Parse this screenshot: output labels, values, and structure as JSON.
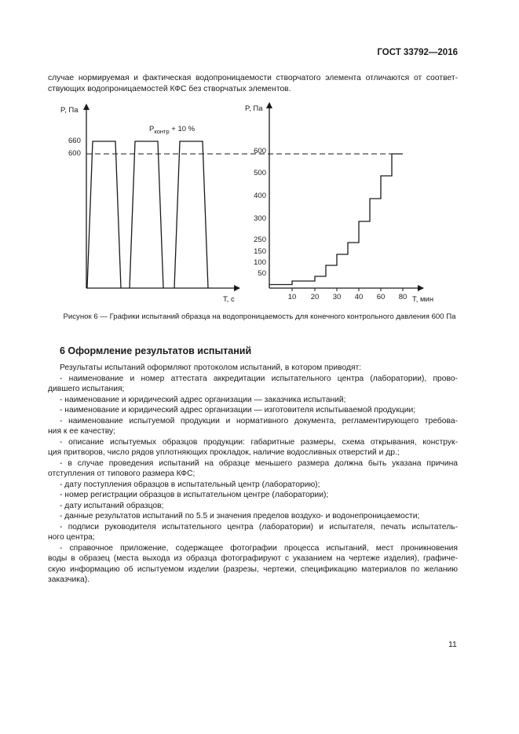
{
  "header": {
    "doc_id": "ГОСТ 33792—2016"
  },
  "intro": {
    "lines": [
      "случае нормируемая и фактическая водопроницаемости створчатого элемента отличаются от соответ-",
      "ствующих водопроницаемостей КФС без створчатых элементов."
    ]
  },
  "figure": {
    "caption": "Рисунок 6 — Графики испытаний образца на водопроницаемость для конечного контрольного давления 600 Па",
    "chart_data": [
      {
        "type": "line",
        "ylabel_var": "P",
        "ylabel_unit": ", Па",
        "xlabel_var": "T",
        "xlabel_unit": ", с",
        "y_ticks": [
          "660",
          "600"
        ],
        "annotation_var": "P",
        "annotation_sub": "контр",
        "annotation_rest": " + 10 %",
        "pulse_level": 660,
        "reference_level": 600,
        "pulse_count": 3,
        "reference_line": "dashed"
      },
      {
        "type": "line",
        "step": true,
        "ylabel_var": "P",
        "ylabel_unit": ", Па",
        "xlabel_var": "T",
        "xlabel_unit": ", мин",
        "x_ticks": [
          "10",
          "20",
          "30",
          "40",
          "60",
          "80"
        ],
        "y_ticks": [
          "600",
          "500",
          "400",
          "300",
          "250",
          "150",
          "100",
          "50"
        ],
        "reference_level": 600,
        "reference_line": "dashed",
        "steps": [
          {
            "from": 0,
            "to": 10,
            "value": 15
          },
          {
            "from": 10,
            "to": 20,
            "value": 30
          },
          {
            "from": 20,
            "to": 25,
            "value": 50
          },
          {
            "from": 25,
            "to": 30,
            "value": 100
          },
          {
            "from": 30,
            "to": 35,
            "value": 150
          },
          {
            "from": 35,
            "to": 40,
            "value": 250
          },
          {
            "from": 40,
            "to": 50,
            "value": 300
          },
          {
            "from": 50,
            "to": 60,
            "value": 400
          },
          {
            "from": 60,
            "to": 70,
            "value": 500
          },
          {
            "from": 70,
            "to": 80,
            "value": 600
          }
        ]
      }
    ]
  },
  "section": {
    "heading": "6 Оформление результатов испытаний"
  },
  "paragraphs": [
    [
      "Результаты испытаний оформляют протоколом испытаний, в котором приводят:"
    ],
    [
      "- наименование и номер аттестата аккредитации испытательного центра (лаборатории), прово-",
      "дившего испытания;"
    ],
    [
      "- наименование и юридический адрес организации — заказчика испытаний;"
    ],
    [
      "- наименование и юридический адрес организации — изготовителя испытываемой продукции;"
    ],
    [
      "- наименование испытуемой продукции и нормативного документа, регламентирующего требова-",
      "ния к ее качеству;"
    ],
    [
      "- описание испытуемых образцов продукции: габаритные размеры, схема открывания, конструк-",
      "ция притворов, число рядов уплотняющих прокладок, наличие водосливных отверстий и др.;"
    ],
    [
      "- в случае проведения испытаний на образце меньшего размера должна быть указана причина",
      "отступления от типового размера КФС;"
    ],
    [
      "- дату поступления образцов в испытательный центр (лабораторию);"
    ],
    [
      "- номер регистрации образцов в испытательном центре (лаборатории);"
    ],
    [
      "- дату испытаний образцов;"
    ],
    [
      "- данные результатов испытаний по 5.5 и значения пределов воздухо- и водонепроницаемости;"
    ],
    [
      "- подписи руководителя испытательного центра (лаборатории) и испытателя, печать испытатель-",
      "ного центра;"
    ],
    [
      "- справочное приложение, содержащее фотографии процесса испытаний, мест проникновения",
      "воды в образец (места выхода из образца фотографируют с указанием на чертеже изделия), графиче-",
      "скую информацию об испытуемом изделии (разрезы, чертежи, спецификацию материалов по желанию",
      "заказчика)."
    ]
  ],
  "footer": {
    "page_number": "11"
  }
}
